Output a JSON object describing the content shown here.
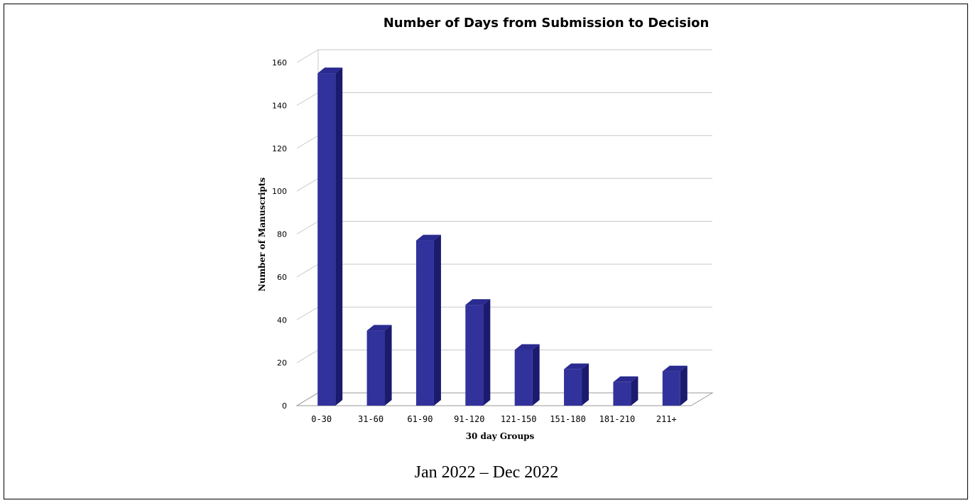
{
  "chart_data": {
    "type": "bar",
    "title": "Number of Days from Submission to Decision",
    "xlabel": "30 day Groups",
    "ylabel": "Number of Manuscripts",
    "categories": [
      "0-30",
      "31-60",
      "61-90",
      "91-120",
      "121-150",
      "151-180",
      "181-210",
      "211+"
    ],
    "values": [
      155,
      35,
      77,
      47,
      26,
      17,
      11,
      16
    ],
    "ylim": [
      0,
      160
    ],
    "yticks": [
      0,
      20,
      40,
      60,
      80,
      100,
      120,
      140,
      160
    ],
    "grid": true,
    "style": "3d",
    "colors": {
      "bar_front": "#32329c",
      "bar_top": "#2a2a90",
      "bar_side": "#1a1a6e",
      "grid": "#c8c8c8"
    }
  },
  "caption": "Jan 2022 – Dec 2022"
}
